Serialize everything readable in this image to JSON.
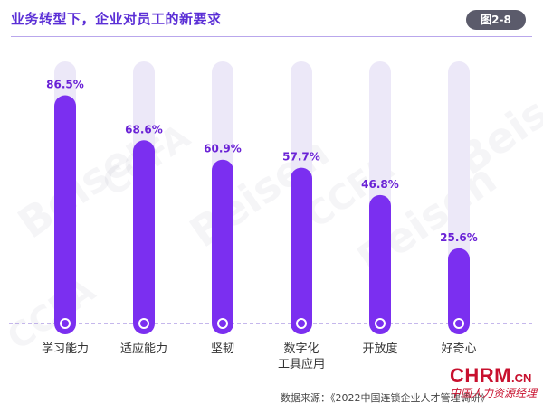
{
  "header": {
    "title": "业务转型下，企业对员工的新要求",
    "badge": "图2-8"
  },
  "watermarks": [
    "Beisen",
    "CCFA"
  ],
  "chart_data": {
    "type": "bar",
    "categories": [
      "学习能力",
      "适应能力",
      "坚韧",
      "数字化工具应用",
      "开放度",
      "好奇心"
    ],
    "category_lines": [
      [
        "学习能力"
      ],
      [
        "适应能力"
      ],
      [
        "坚韧"
      ],
      [
        "数字化",
        "工具应用"
      ],
      [
        "开放度"
      ],
      [
        "好奇心"
      ]
    ],
    "values": [
      86.5,
      68.6,
      60.9,
      57.7,
      46.8,
      25.6
    ],
    "value_labels": [
      "86.5%",
      "68.6%",
      "60.9%",
      "57.7%",
      "46.8%",
      "25.6%"
    ],
    "ylim": [
      0,
      100
    ],
    "colors": {
      "bar": "#7b2ff0",
      "track": "#ece8f8",
      "label": "#6a22d6",
      "baseline": "#8b6fd8"
    }
  },
  "footer": {
    "source": "数据来源：《2022中国连锁企业人才管理调研》",
    "logo_main": "CHRM",
    "logo_domain": ".CN",
    "logo_sub": "中国人力资源经理"
  }
}
